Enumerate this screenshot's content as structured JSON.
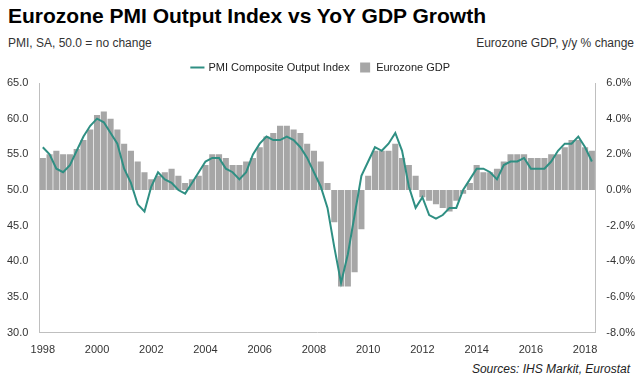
{
  "chart_data": {
    "type": "bar",
    "title": "Eurozone PMI Output Index vs YoY GDP Growth",
    "y_label": "PMI, SA, 50.0 = no change",
    "y2_label": "Eurozone GDP, y/y % change",
    "source": "Sources: IHS Markit, Eurostat",
    "categories": [
      "1998",
      null,
      null,
      null,
      null,
      null,
      null,
      null,
      "2000",
      null,
      null,
      null,
      null,
      null,
      null,
      null,
      "2002",
      null,
      null,
      null,
      null,
      null,
      null,
      null,
      "2004",
      null,
      null,
      null,
      null,
      null,
      null,
      null,
      "2006",
      null,
      null,
      null,
      null,
      null,
      null,
      null,
      "2008",
      null,
      null,
      null,
      null,
      null,
      null,
      null,
      "2010",
      null,
      null,
      null,
      null,
      null,
      null,
      null,
      "2012",
      null,
      null,
      null,
      null,
      null,
      null,
      null,
      "2014",
      null,
      null,
      null,
      null,
      null,
      null,
      null,
      "2016",
      null,
      null,
      null,
      null,
      null,
      null,
      null,
      "2018",
      null
    ],
    "series": [
      {
        "name": "Eurozone GDP",
        "type": "bar",
        "color": "#a6a6a6",
        "axis": "y2",
        "values": [
          1.8,
          2.0,
          2.2,
          2.0,
          2.0,
          2.3,
          2.8,
          3.4,
          4.2,
          4.4,
          4.0,
          3.4,
          2.6,
          2.2,
          1.6,
          1.0,
          0.6,
          0.8,
          1.0,
          1.2,
          0.8,
          0.4,
          0.6,
          0.8,
          1.4,
          2.0,
          2.0,
          1.8,
          1.4,
          1.4,
          1.6,
          1.8,
          2.4,
          3.0,
          3.2,
          3.6,
          3.6,
          3.4,
          3.2,
          2.6,
          2.2,
          1.6,
          0.4,
          -1.8,
          -5.4,
          -5.4,
          -4.6,
          -2.2,
          0.8,
          2.2,
          2.2,
          2.2,
          2.6,
          1.8,
          1.4,
          0.8,
          -0.4,
          -0.6,
          -0.8,
          -1.0,
          -1.2,
          -0.6,
          -0.2,
          0.4,
          1.4,
          1.0,
          1.0,
          1.2,
          1.6,
          2.0,
          2.0,
          2.0,
          1.8,
          1.8,
          1.8,
          2.0,
          2.0,
          2.4,
          2.8,
          2.8,
          2.4,
          2.2
        ]
      },
      {
        "name": "PMI Composite Output Index",
        "type": "line",
        "color": "#2f8f83",
        "line_style": "solid",
        "values": [
          56,
          55,
          53,
          52.5,
          53.5,
          55.5,
          57.5,
          59,
          60,
          59.5,
          58,
          56.5,
          53,
          51,
          48,
          47,
          50.5,
          52.5,
          51.5,
          51,
          50,
          49.5,
          51,
          52.5,
          54,
          54.5,
          54.5,
          53,
          52.5,
          51.5,
          52.5,
          55,
          56.5,
          57.5,
          57,
          57,
          57.5,
          57,
          56,
          54.5,
          52.5,
          50.5,
          47.5,
          42,
          37,
          41,
          46.5,
          52,
          54,
          56,
          55.5,
          56.5,
          58,
          55.5,
          50.5,
          47.5,
          49,
          46.5,
          46,
          46.5,
          47.5,
          47.5,
          50,
          51.5,
          53,
          53,
          52.5,
          51.5,
          53.5,
          54,
          54,
          54.5,
          53,
          53,
          53,
          54,
          55.5,
          56.5,
          56.5,
          57.5,
          56,
          54
        ]
      }
    ],
    "ylim": [
      30,
      65
    ],
    "yticks": [
      {
        "value": 30,
        "label": "30.0"
      },
      {
        "value": 35,
        "label": "35.0"
      },
      {
        "value": 40,
        "label": "40.0"
      },
      {
        "value": 45,
        "label": "45.0"
      },
      {
        "value": 50,
        "label": "50.0"
      },
      {
        "value": 55,
        "label": "55.0"
      },
      {
        "value": 60,
        "label": "60.0"
      },
      {
        "value": 65,
        "label": "65.0"
      }
    ],
    "y2lim": [
      -8,
      6
    ],
    "y2ticks": [
      {
        "value": -8,
        "label": "-8.0%"
      },
      {
        "value": -6,
        "label": "-6.0%"
      },
      {
        "value": -4,
        "label": "-4.0%"
      },
      {
        "value": -2,
        "label": "-2.0%"
      },
      {
        "value": 0,
        "label": "0.0%"
      },
      {
        "value": 2,
        "label": "2.0%"
      },
      {
        "value": 4,
        "label": "4.0%"
      },
      {
        "value": 6,
        "label": "6.0%"
      }
    ],
    "grid": false,
    "legend": "top"
  }
}
